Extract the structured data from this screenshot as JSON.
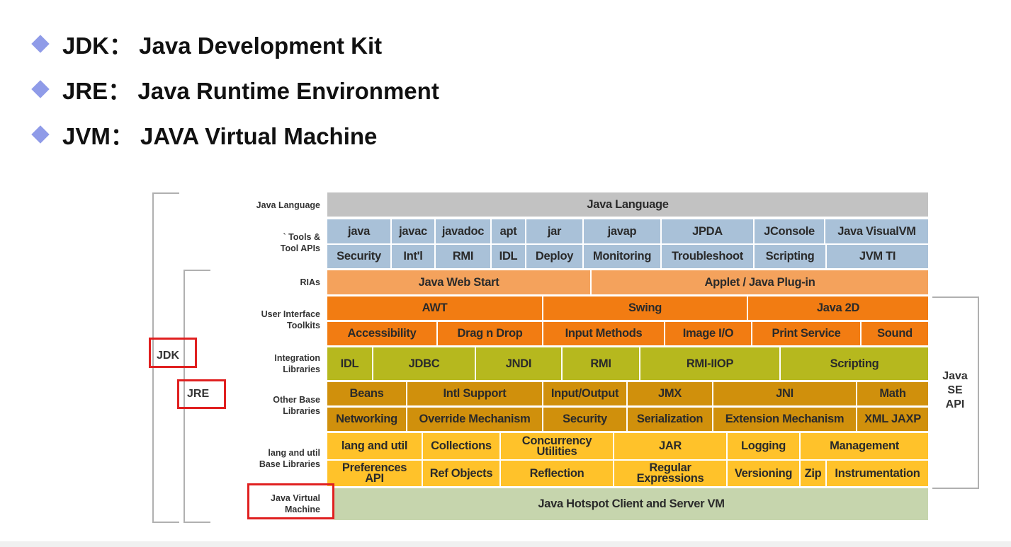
{
  "bullets": [
    {
      "text": "JDK： Java Development Kit"
    },
    {
      "text": "JRE： Java Runtime Environment"
    },
    {
      "text": "JVM： JAVA Virtual Machine"
    }
  ],
  "diagram": {
    "row_labels": [
      "Java Language",
      "` Tools &\nTool APIs",
      "RIAs",
      "User Interface\nToolkits",
      "Integration\nLibraries",
      "Other Base\nLibraries",
      "lang and util\nBase Libraries",
      "Java Virtual\nMachine"
    ],
    "side_labels": {
      "jdk": "JDK",
      "jre": "JRE",
      "java_se_api": "Java\nSE\nAPI"
    },
    "colors": {
      "language": "#c2c2c2",
      "tools": "#a9c1d8",
      "rias": "#f4a25c",
      "ui": "#f27c12",
      "integration": "#b6b81e",
      "other_base": "#d0900c",
      "lang_util": "#ffc22a",
      "jvm": "#c6d5ad",
      "highlight_box": "#e02020"
    },
    "rows": [
      {
        "group": "language",
        "cells": [
          "Java Language"
        ]
      },
      {
        "group": "tools",
        "cells": [
          "java",
          "javac",
          "javadoc",
          "apt",
          "jar",
          "javap",
          "JPDA",
          "JConsole",
          "Java VisualVM"
        ]
      },
      {
        "group": "tools",
        "cells": [
          "Security",
          "Int'l",
          "RMI",
          "IDL",
          "Deploy",
          "Monitoring",
          "Troubleshoot",
          "Scripting",
          "JVM TI"
        ]
      },
      {
        "group": "rias",
        "cells": [
          "Java Web Start",
          "Applet / Java Plug-in"
        ]
      },
      {
        "group": "ui",
        "cells": [
          "AWT",
          "Swing",
          "Java 2D"
        ]
      },
      {
        "group": "ui",
        "cells": [
          "Accessibility",
          "Drag n Drop",
          "Input Methods",
          "Image I/O",
          "Print Service",
          "Sound"
        ]
      },
      {
        "group": "integration",
        "cells": [
          "IDL",
          "JDBC",
          "JNDI",
          "RMI",
          "RMI-IIOP",
          "Scripting"
        ]
      },
      {
        "group": "other_base",
        "cells": [
          "Beans",
          "Intl Support",
          "Input/Output",
          "JMX",
          "JNI",
          "Math"
        ]
      },
      {
        "group": "other_base",
        "cells": [
          "Networking",
          "Override Mechanism",
          "Security",
          "Serialization",
          "Extension Mechanism",
          "XML JAXP"
        ]
      },
      {
        "group": "lang_util",
        "cells": [
          "lang and util",
          "Collections",
          "Concurrency\nUtilities",
          "JAR",
          "Logging",
          "Management"
        ]
      },
      {
        "group": "lang_util",
        "cells": [
          "Preferences\nAPI",
          "Ref Objects",
          "Reflection",
          "Regular\nExpressions",
          "Versioning",
          "Zip",
          "Instrumentation"
        ]
      },
      {
        "group": "jvm",
        "cells": [
          "Java Hotspot Client and Server VM"
        ]
      }
    ]
  }
}
